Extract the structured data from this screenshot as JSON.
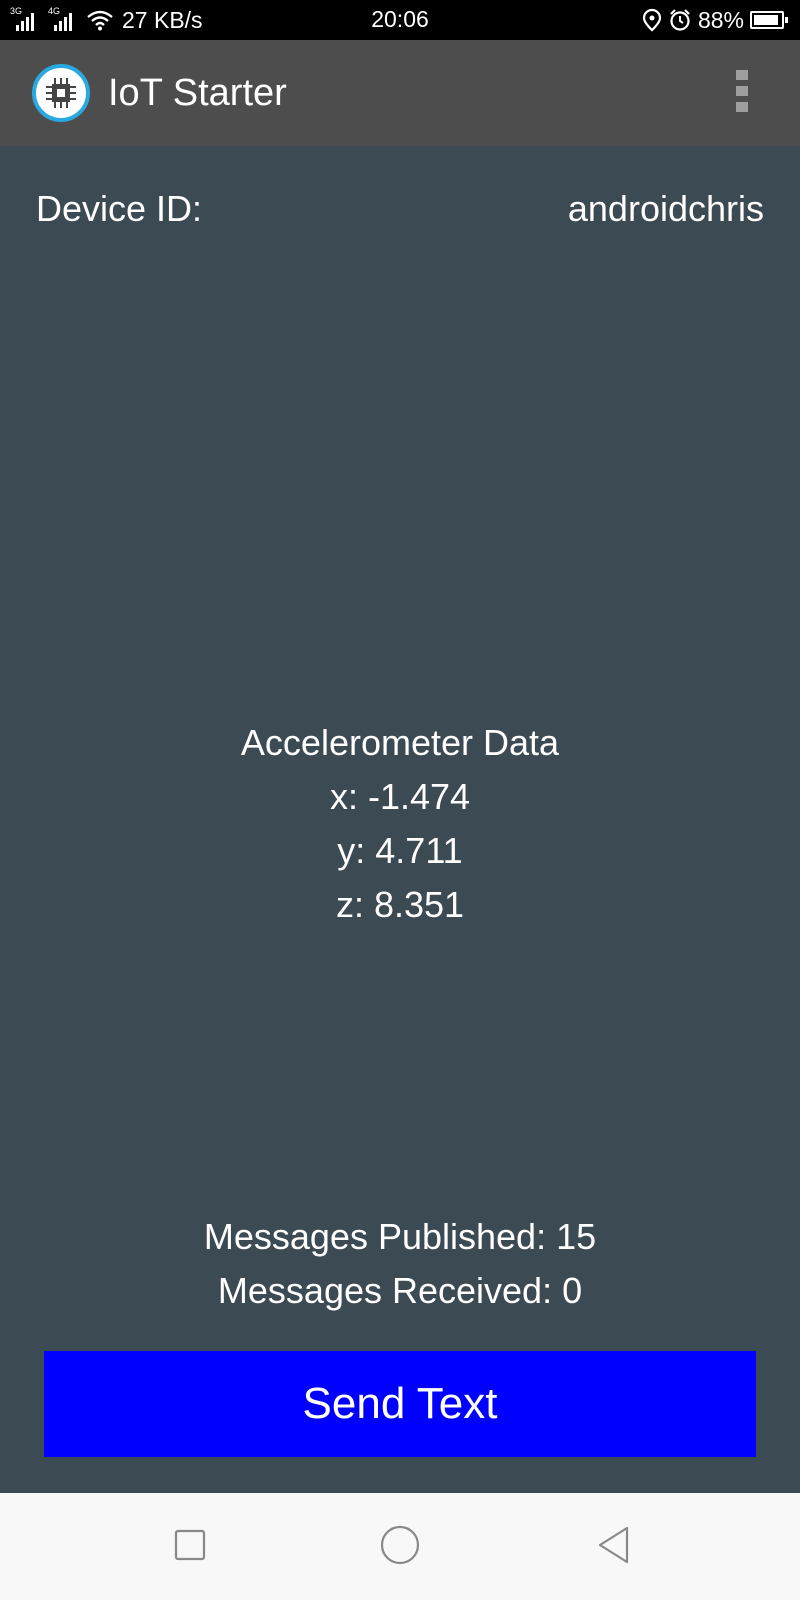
{
  "status_bar": {
    "sim1_network": "3G",
    "sim2_network": "4G",
    "speed": "27 KB/s",
    "time": "20:06",
    "battery": "88%",
    "battery_level": 0.88,
    "icons": [
      "signal-icon",
      "wifi-icon",
      "location-icon",
      "alarm-icon",
      "battery-icon"
    ]
  },
  "app_bar": {
    "title": "IoT Starter",
    "logo_icon": "chip-icon",
    "menu_icon": "overflow-menu-icon",
    "logo_ring_color": "#29a9e0"
  },
  "device": {
    "label": "Device ID:",
    "value": "androidchris"
  },
  "accelerometer": {
    "title": "Accelerometer Data",
    "x": "x: -1.474",
    "y": "y: 4.711",
    "z": "z: 8.351"
  },
  "messages": {
    "published": "Messages Published: 15",
    "received": "Messages Received: 0"
  },
  "send_button": {
    "label": "Send Text",
    "color": "#0000ff"
  },
  "nav_bar": {
    "icons": [
      "recent-apps-icon",
      "home-icon",
      "back-icon"
    ]
  },
  "colors": {
    "background": "#3c4a54",
    "app_bar": "#4d4d4d"
  }
}
